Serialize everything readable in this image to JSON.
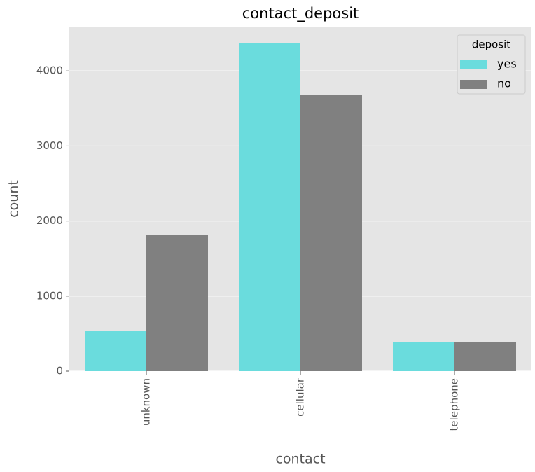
{
  "chart_data": {
    "type": "bar",
    "title": "contact_deposit",
    "x_label": "contact",
    "y_label": "count",
    "categories": [
      "unknown",
      "cellular",
      "telephone"
    ],
    "legend_title": "deposit",
    "legend_position": "upper right",
    "series": [
      {
        "name": "yes",
        "color": "#6adcdd",
        "values": [
          532,
          4374,
          384
        ]
      },
      {
        "name": "no",
        "color": "#808080",
        "values": [
          1810,
          3685,
          390
        ]
      }
    ],
    "ylim": [
      0,
      4590
    ],
    "yticks": [
      0,
      1000,
      2000,
      3000,
      4000
    ],
    "grid": true
  }
}
